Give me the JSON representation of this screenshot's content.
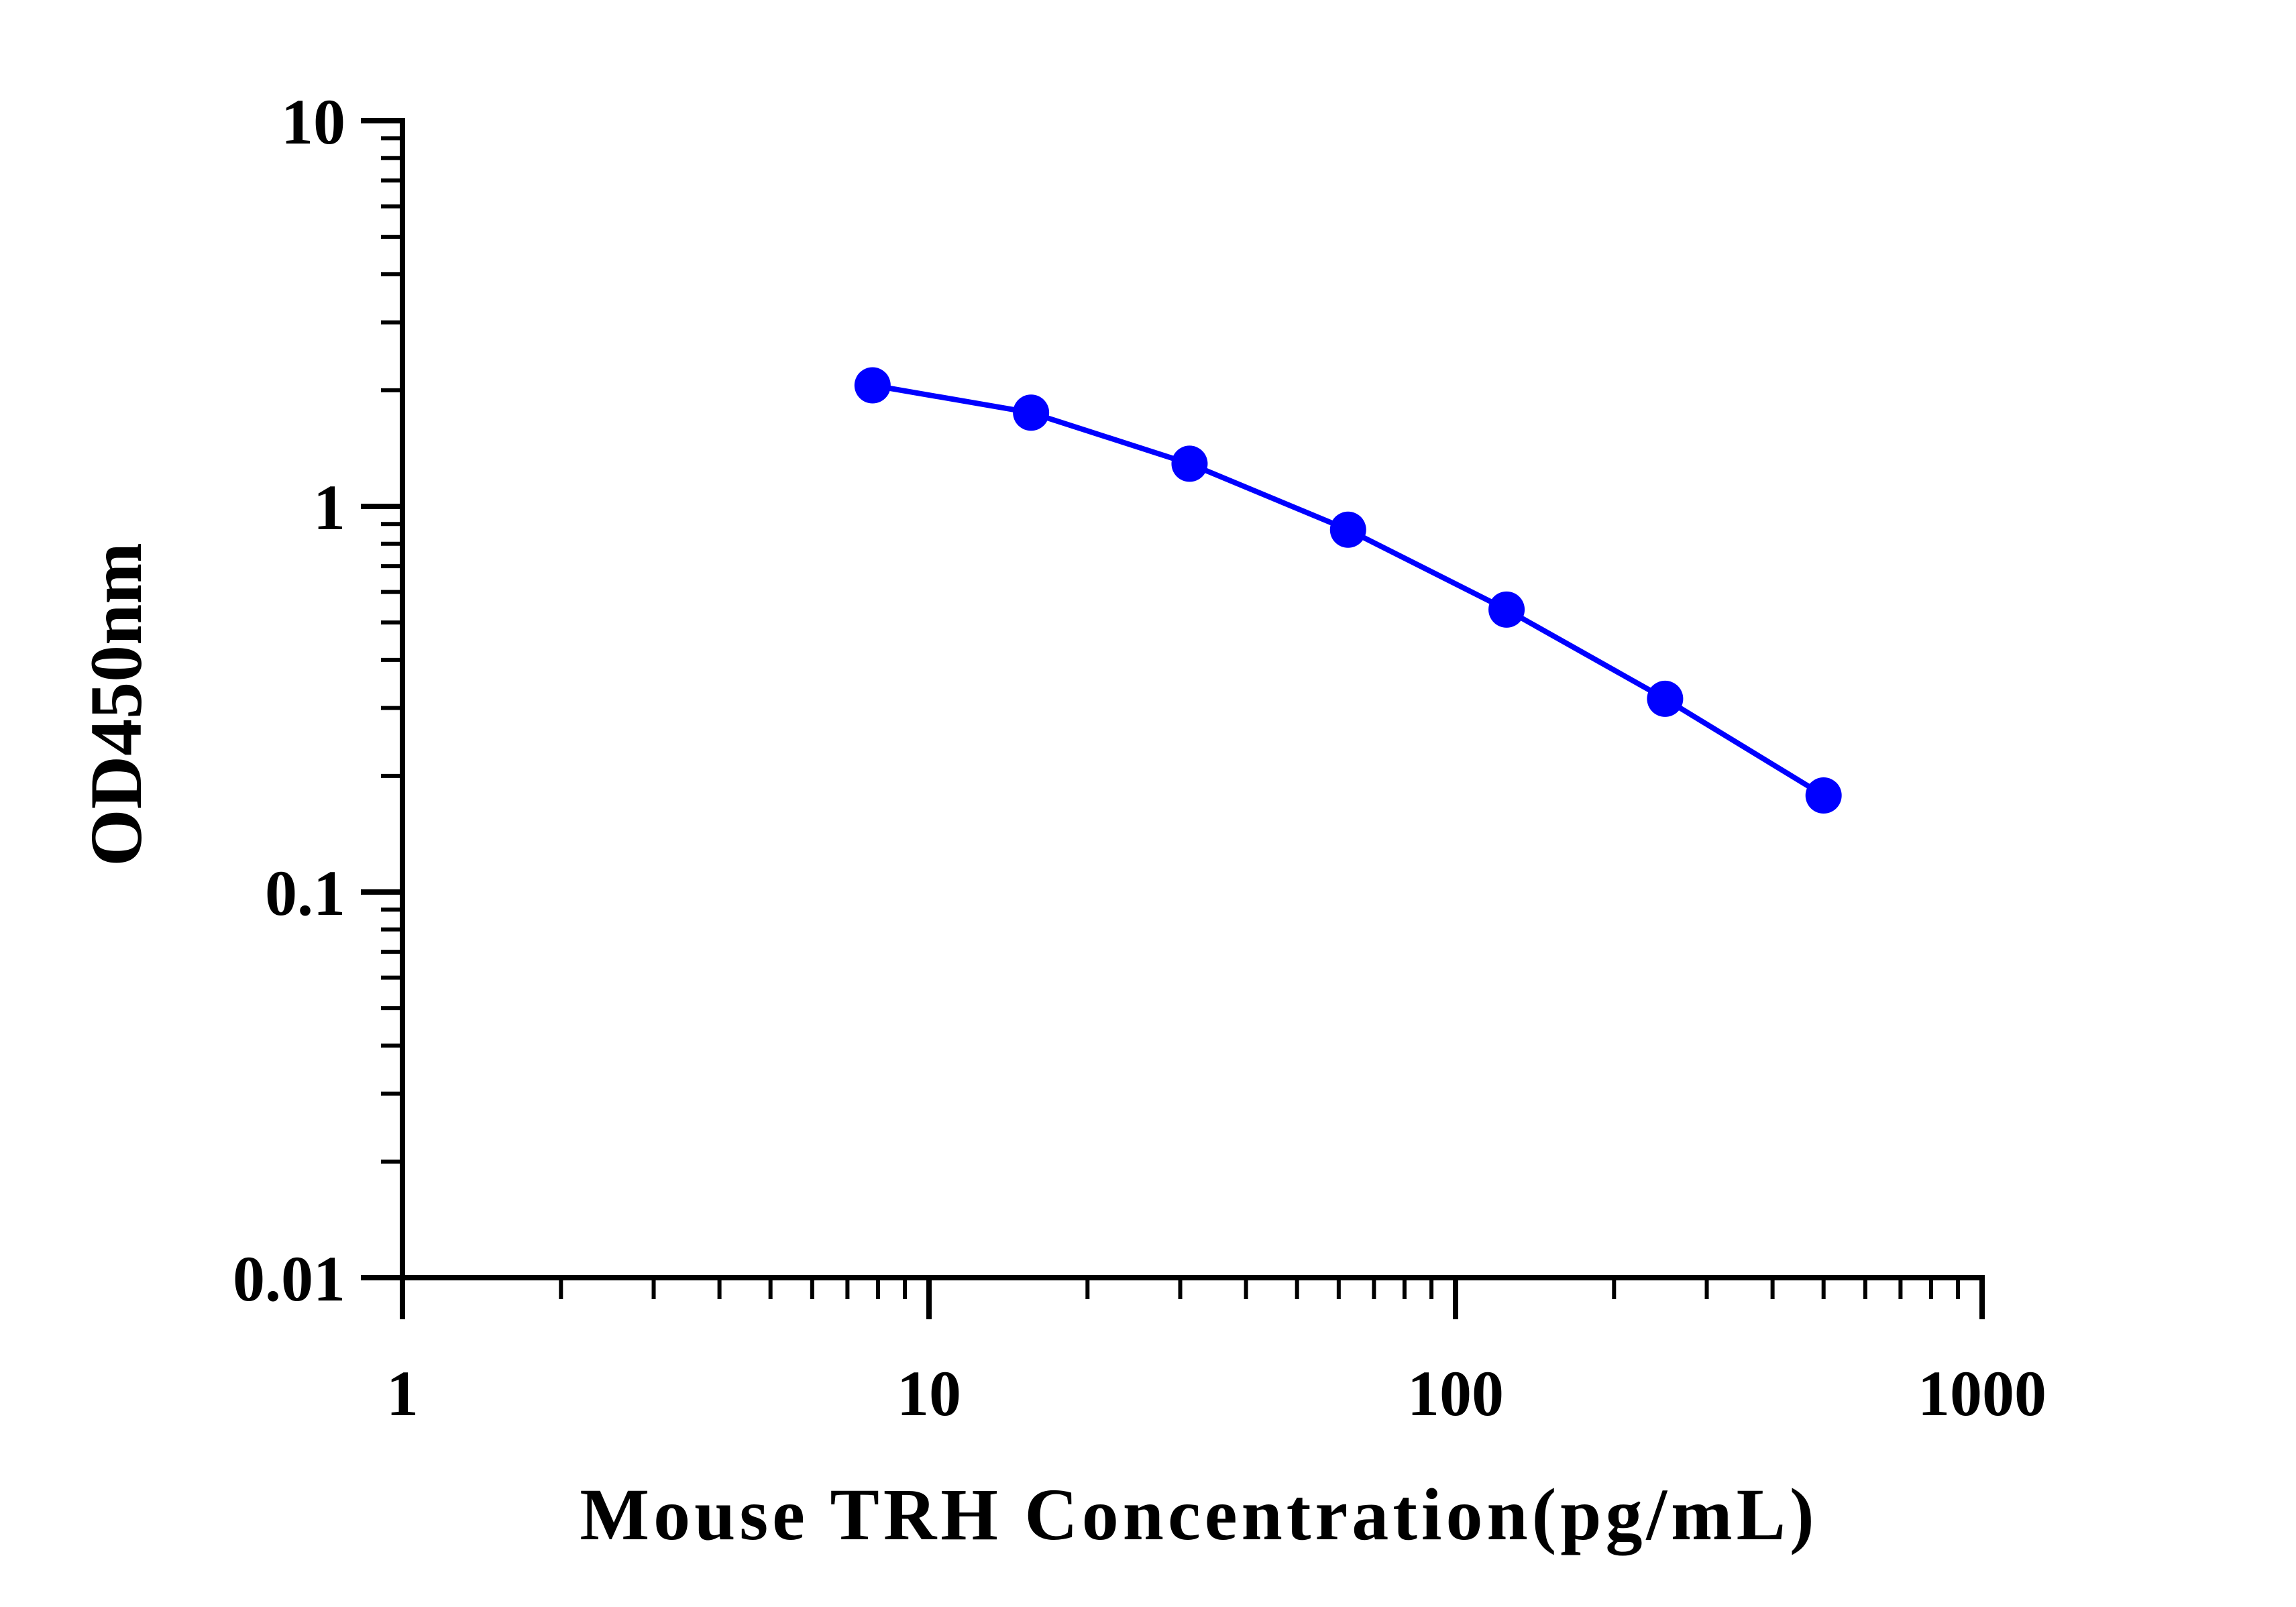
{
  "chart_data": {
    "type": "line",
    "x_scale": "log",
    "y_scale": "log",
    "xlim": [
      1,
      1000
    ],
    "ylim": [
      0.01,
      10
    ],
    "x_ticks": [
      "1",
      "10",
      "100",
      "1000"
    ],
    "y_ticks": [
      "0.01",
      "0.1",
      "1",
      "10"
    ],
    "xlabel": "Mouse TRH Concentration(pg/mL)",
    "ylabel": "OD450nm",
    "grid": false,
    "legend": "none",
    "series": [
      {
        "color": "#0000ff",
        "x": [
          7.8125,
          15.625,
          31.25,
          62.5,
          125,
          250,
          500
        ],
        "y": [
          2.06,
          1.75,
          1.29,
          0.87,
          0.54,
          0.317,
          0.178
        ]
      }
    ]
  }
}
